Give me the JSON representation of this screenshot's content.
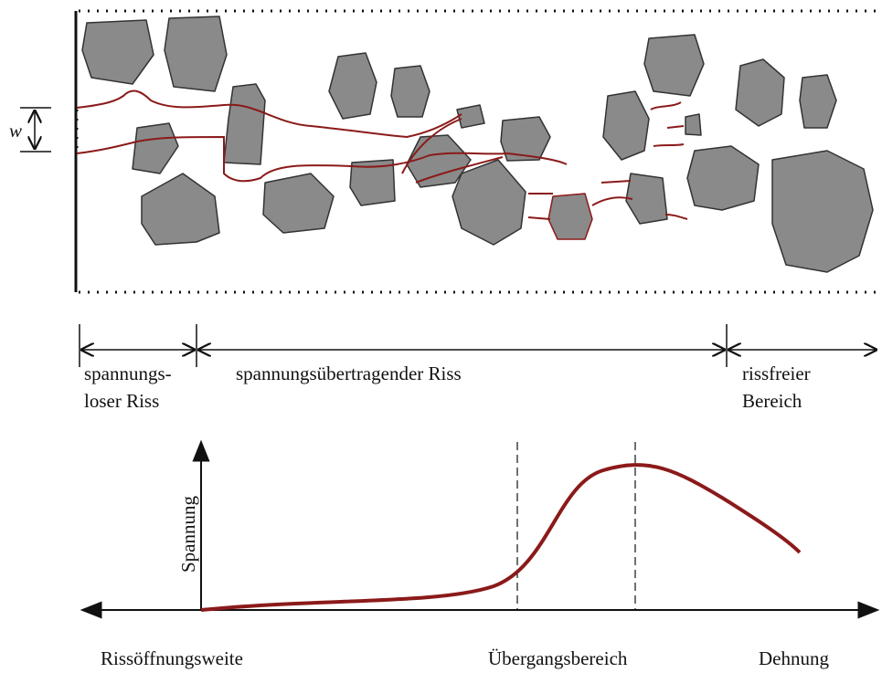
{
  "crack_zone": {
    "width_symbol": "w"
  },
  "zones": [
    {
      "label_lines": [
        "spannungs-",
        "loser Riss"
      ]
    },
    {
      "label_lines": [
        "spannungsübertragender Riss"
      ]
    },
    {
      "label_lines": [
        "rissfreier",
        "Bereich"
      ]
    }
  ],
  "graph": {
    "y_axis_label": "Spannung",
    "x_labels": [
      "Rissöffnungsweite",
      "Übergangsbereich",
      "Dehnung"
    ]
  }
}
